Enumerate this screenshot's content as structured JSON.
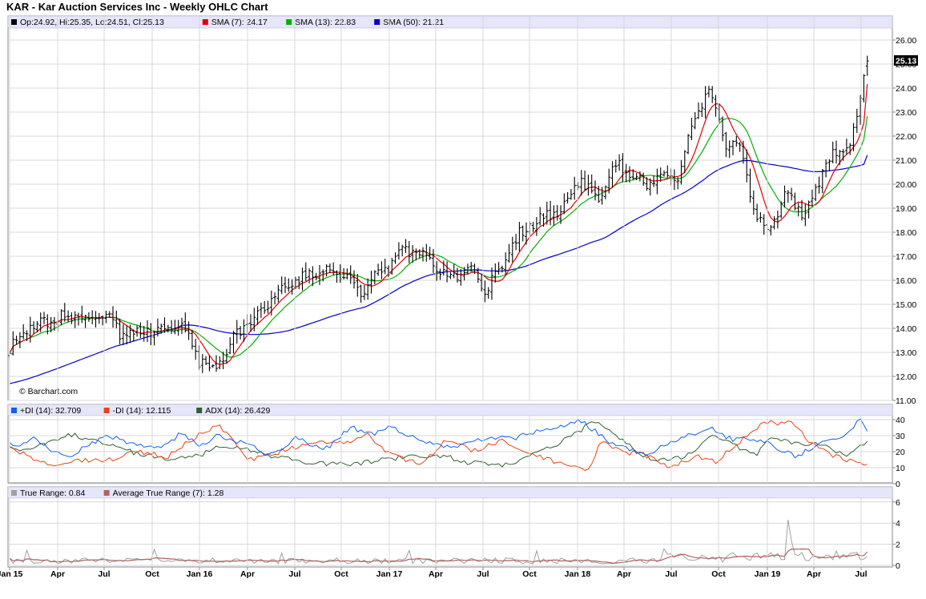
{
  "title": "KAR - Kar Auction Services Inc - Weekly OHLC Chart",
  "watermark": "© Barchart.com",
  "last_price_label": "25.13",
  "legends": {
    "price": [
      {
        "text": "Op:24.92, Hi:25.35, Lo:24.51, Cl:25.13",
        "color": "#000000"
      },
      {
        "text": "SMA (7): 24.17",
        "color": "#e00000"
      },
      {
        "text": "SMA (13): 22.83",
        "color": "#00b000"
      },
      {
        "text": "SMA (50): 21.21",
        "color": "#0000cc"
      }
    ],
    "dmi": [
      {
        "text": "+DI (14): 32.709",
        "color": "#1060f0"
      },
      {
        "text": "-DI (14): 12.115",
        "color": "#f04010"
      },
      {
        "text": "ADX (14): 26.429",
        "color": "#306030"
      }
    ],
    "tr": [
      {
        "text": "True Range: 0.84",
        "color": "#a0a0a0"
      },
      {
        "text": "Average True Range (7): 1.28",
        "color": "#b06060"
      }
    ]
  },
  "colors": {
    "bars": "#000000",
    "sma7": "#e00000",
    "sma13": "#00b000",
    "sma50": "#0000cc",
    "plus_di": "#1060f0",
    "minus_di": "#f04010",
    "adx": "#306030",
    "true_range": "#a0a0a0",
    "atr": "#b06060",
    "legend_bg": "#e6e6fa",
    "grid": "#d8d8d8"
  },
  "chart_data": [
    {
      "type": "ohlc",
      "title": "KAR - Kar Auction Services Inc - Weekly OHLC Chart",
      "x_tick_labels": [
        "Jan 15",
        "Apr",
        "Jul",
        "Oct",
        "Jan 16",
        "Apr",
        "Jul",
        "Oct",
        "Jan 17",
        "Apr",
        "Jul",
        "Oct",
        "Jan 18",
        "Apr",
        "Jul",
        "Oct",
        "Jan 19",
        "Apr",
        "Jul"
      ],
      "y_ticks": [
        "11.00",
        "12.00",
        "13.00",
        "14.00",
        "15.00",
        "16.00",
        "17.00",
        "18.00",
        "19.00",
        "20.00",
        "21.00",
        "22.00",
        "23.00",
        "24.00",
        "25.00",
        "26.00"
      ],
      "ylim": [
        11,
        26.7
      ],
      "grid": true,
      "close_anchors": [
        [
          "Jan 15",
          13.1
        ],
        [
          "Feb 15",
          13.9
        ],
        [
          "Mar 15",
          14.3
        ],
        [
          "Apr 15",
          14.4
        ],
        [
          "May 15",
          14.5
        ],
        [
          "Jun 15",
          14.3
        ],
        [
          "Jul 15",
          14.5
        ],
        [
          "Aug 15",
          13.8
        ],
        [
          "Sep 15",
          13.7
        ],
        [
          "Oct 15",
          14.0
        ],
        [
          "Nov 15",
          14.2
        ],
        [
          "Dec 15",
          13.9
        ],
        [
          "Jan 16",
          12.6
        ],
        [
          "Feb 16",
          12.3
        ],
        [
          "Mar 16",
          13.5
        ],
        [
          "Apr 16",
          14.2
        ],
        [
          "May 16",
          14.9
        ],
        [
          "Jun 16",
          15.6
        ],
        [
          "Jul 16",
          15.9
        ],
        [
          "Aug 16",
          16.2
        ],
        [
          "Sep 16",
          16.5
        ],
        [
          "Oct 16",
          16.3
        ],
        [
          "Nov 16",
          15.4
        ],
        [
          "Dec 16",
          16.3
        ],
        [
          "Jan 17",
          16.7
        ],
        [
          "Feb 17",
          17.3
        ],
        [
          "Mar 17",
          17.2
        ],
        [
          "Apr 17",
          16.3
        ],
        [
          "May 17",
          16.1
        ],
        [
          "Jun 17",
          16.5
        ],
        [
          "Jul 17",
          15.6
        ],
        [
          "Aug 17",
          16.6
        ],
        [
          "Sep 17",
          17.8
        ],
        [
          "Oct 17",
          18.4
        ],
        [
          "Nov 17",
          18.7
        ],
        [
          "Dec 17",
          19.2
        ],
        [
          "Jan 18",
          20.3
        ],
        [
          "Feb 18",
          19.2
        ],
        [
          "Mar 18",
          20.9
        ],
        [
          "Apr 18",
          20.4
        ],
        [
          "May 18",
          19.9
        ],
        [
          "Jun 18",
          20.6
        ],
        [
          "Jul 18",
          20.3
        ],
        [
          "Aug 18",
          22.6
        ],
        [
          "Sep 18",
          24.0
        ],
        [
          "Oct 18",
          21.8
        ],
        [
          "Nov 18",
          21.5
        ],
        [
          "Dec 18",
          18.6
        ],
        [
          "Jan 19",
          18.2
        ],
        [
          "Feb 19",
          19.8
        ],
        [
          "Mar 19",
          18.6
        ],
        [
          "Apr 19",
          20.3
        ],
        [
          "May 19",
          21.3
        ],
        [
          "Jun 19",
          21.7
        ],
        [
          "Jul 19",
          25.13
        ]
      ],
      "last_bar": {
        "open": 24.92,
        "high": 25.35,
        "low": 24.51,
        "close": 25.13
      },
      "series": [
        {
          "name": "SMA (7)",
          "last": 24.17
        },
        {
          "name": "SMA (13)",
          "last": 22.83
        },
        {
          "name": "SMA (50)",
          "last": 21.21
        }
      ]
    },
    {
      "type": "line",
      "y_ticks": [
        "0",
        "10",
        "20",
        "30",
        "40"
      ],
      "ylim": [
        0,
        42
      ],
      "grid": true,
      "series": [
        {
          "name": "+DI (14)",
          "last": 32.709,
          "anchors": [
            [
              0,
              25
            ],
            [
              10,
              22
            ],
            [
              30,
              29
            ],
            [
              55,
              20
            ],
            [
              80,
              18
            ],
            [
              100,
              25
            ],
            [
              125,
              30
            ],
            [
              160,
              24
            ],
            [
              190,
              22
            ],
            [
              215,
              31
            ],
            [
              240,
              24
            ],
            [
              260,
              30
            ],
            [
              300,
              25
            ],
            [
              330,
              18
            ],
            [
              360,
              28
            ],
            [
              400,
              22
            ],
            [
              430,
              35
            ],
            [
              460,
              31
            ],
            [
              480,
              35
            ],
            [
              520,
              26
            ],
            [
              560,
              22
            ],
            [
              600,
              28
            ],
            [
              640,
              29
            ],
            [
              680,
              35
            ],
            [
              720,
              39
            ],
            [
              760,
              25
            ],
            [
              800,
              18
            ],
            [
              840,
              27
            ],
            [
              880,
              35
            ],
            [
              910,
              28
            ],
            [
              950,
              27
            ],
            [
              990,
              17
            ],
            [
              1020,
              24
            ],
            [
              1050,
              30
            ],
            [
              1072,
              40
            ],
            [
              1081,
              32.7
            ]
          ]
        },
        {
          "name": "-DI (14)",
          "last": 12.115,
          "anchors": [
            [
              0,
              22
            ],
            [
              20,
              18
            ],
            [
              50,
              11
            ],
            [
              80,
              15
            ],
            [
              120,
              14
            ],
            [
              160,
              20
            ],
            [
              200,
              17
            ],
            [
              245,
              33
            ],
            [
              265,
              36
            ],
            [
              300,
              15
            ],
            [
              340,
              20
            ],
            [
              380,
              26
            ],
            [
              420,
              25
            ],
            [
              450,
              31
            ],
            [
              480,
              18
            ],
            [
              520,
              12
            ],
            [
              550,
              27
            ],
            [
              590,
              20
            ],
            [
              620,
              28
            ],
            [
              660,
              18
            ],
            [
              700,
              12
            ],
            [
              730,
              8
            ],
            [
              745,
              28
            ],
            [
              770,
              20
            ],
            [
              800,
              18
            ],
            [
              830,
              10
            ],
            [
              870,
              17
            ],
            [
              890,
              14
            ],
            [
              920,
              26
            ],
            [
              950,
              38
            ],
            [
              985,
              38
            ],
            [
              1010,
              26
            ],
            [
              1040,
              17
            ],
            [
              1060,
              14
            ],
            [
              1081,
              12.1
            ]
          ]
        },
        {
          "name": "ADX (14)",
          "last": 26.429,
          "anchors": [
            [
              0,
              22
            ],
            [
              30,
              22
            ],
            [
              75,
              31
            ],
            [
              120,
              25
            ],
            [
              160,
              19
            ],
            [
              200,
              15
            ],
            [
              240,
              18
            ],
            [
              270,
              24
            ],
            [
              310,
              20
            ],
            [
              340,
              16
            ],
            [
              380,
              13
            ],
            [
              420,
              12
            ],
            [
              460,
              14
            ],
            [
              500,
              17
            ],
            [
              540,
              18
            ],
            [
              580,
              13
            ],
            [
              620,
              11
            ],
            [
              650,
              16
            ],
            [
              690,
              25
            ],
            [
              738,
              39
            ],
            [
              770,
              28
            ],
            [
              800,
              17
            ],
            [
              830,
              14
            ],
            [
              860,
              19
            ],
            [
              888,
              31
            ],
            [
              910,
              25
            ],
            [
              940,
              18
            ],
            [
              960,
              29
            ],
            [
              985,
              25
            ],
            [
              1020,
              25
            ],
            [
              1055,
              17
            ],
            [
              1081,
              26.4
            ]
          ]
        }
      ]
    },
    {
      "type": "line",
      "y_ticks": [
        "0",
        "2",
        "4",
        "6"
      ],
      "ylim": [
        0,
        6.8
      ],
      "grid": true,
      "series": [
        {
          "name": "True Range",
          "last": 0.84
        },
        {
          "name": "Average True Range (7)",
          "last": 1.28
        }
      ]
    }
  ]
}
